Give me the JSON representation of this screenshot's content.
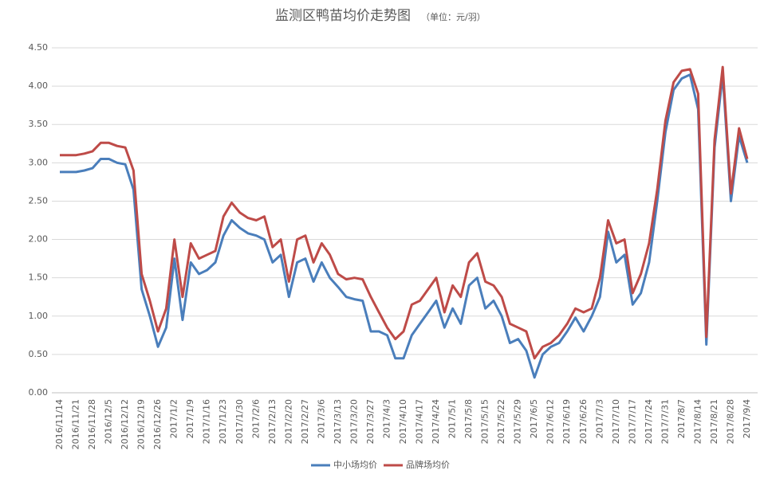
{
  "chart_data": {
    "type": "line",
    "title": "监测区鸭苗均价走势图",
    "subtitle": "（单位：元/羽）",
    "categories": [
      "2016/11/14",
      null,
      "2016/11/21",
      null,
      "2016/11/28",
      null,
      "2016/12/5",
      null,
      "2016/12/12",
      null,
      "2016/12/19",
      null,
      "2016/12/26",
      null,
      "2017/1/2",
      null,
      "2017/1/9",
      null,
      "2017/1/16",
      null,
      "2017/1/23",
      null,
      "2017/1/30",
      null,
      "2017/2/6",
      null,
      "2017/2/13",
      null,
      "2017/2/20",
      null,
      "2017/2/27",
      null,
      "2017/3/6",
      null,
      "2017/3/13",
      null,
      "2017/3/20",
      null,
      "2017/3/27",
      null,
      "2017/4/3",
      null,
      "2017/4/10",
      null,
      "2017/4/17",
      null,
      "2017/4/24",
      null,
      "2017/5/1",
      null,
      "2017/5/8",
      null,
      "2017/5/15",
      null,
      "2017/5/22",
      null,
      "2017/5/29",
      null,
      "2017/6/5",
      null,
      "2017/6/12",
      null,
      "2017/6/19",
      null,
      "2017/6/26",
      null,
      "2017/7/3",
      null,
      "2017/7/10",
      null,
      "2017/7/17",
      null,
      "2017/7/24",
      null,
      "2017/7/31",
      null,
      "2017/8/7",
      null,
      "2017/8/14",
      null,
      "2017/8/21",
      null,
      "2017/8/28",
      null,
      "2017/9/4"
    ],
    "series": [
      {
        "name": "中小场均价",
        "color": "#4a7ebb",
        "values": [
          2.88,
          2.88,
          2.88,
          2.9,
          2.93,
          3.05,
          3.05,
          3.0,
          2.98,
          2.65,
          1.35,
          1.0,
          0.6,
          0.85,
          1.75,
          0.95,
          1.7,
          1.55,
          1.6,
          1.7,
          2.05,
          2.25,
          2.15,
          2.08,
          2.05,
          2.0,
          1.7,
          1.8,
          1.25,
          1.7,
          1.75,
          1.45,
          1.7,
          1.5,
          1.38,
          1.25,
          1.22,
          1.2,
          0.8,
          0.8,
          0.75,
          0.45,
          0.45,
          0.75,
          0.9,
          1.05,
          1.2,
          0.85,
          1.1,
          0.9,
          1.4,
          1.5,
          1.1,
          1.2,
          1.0,
          0.65,
          0.7,
          0.55,
          0.2,
          0.5,
          0.6,
          0.65,
          0.8,
          0.98,
          0.8,
          1.0,
          1.25,
          2.1,
          1.7,
          1.8,
          1.15,
          1.3,
          1.7,
          2.5,
          3.4,
          3.95,
          4.1,
          4.15,
          3.7,
          0.63,
          3.2,
          4.15,
          2.5,
          3.35,
          3.0
        ]
      },
      {
        "name": "品牌场均价",
        "color": "#be4b48",
        "values": [
          3.1,
          3.1,
          3.1,
          3.12,
          3.15,
          3.26,
          3.26,
          3.22,
          3.2,
          2.9,
          1.55,
          1.2,
          0.8,
          1.1,
          2.0,
          1.25,
          1.95,
          1.75,
          1.8,
          1.85,
          2.3,
          2.48,
          2.35,
          2.28,
          2.25,
          2.3,
          1.9,
          2.0,
          1.45,
          2.0,
          2.05,
          1.7,
          1.95,
          1.8,
          1.55,
          1.48,
          1.5,
          1.48,
          1.25,
          1.05,
          0.85,
          0.7,
          0.8,
          1.15,
          1.2,
          1.35,
          1.5,
          1.05,
          1.4,
          1.25,
          1.7,
          1.82,
          1.45,
          1.4,
          1.25,
          0.9,
          0.85,
          0.8,
          0.45,
          0.6,
          0.65,
          0.75,
          0.9,
          1.1,
          1.05,
          1.1,
          1.5,
          2.25,
          1.95,
          2.0,
          1.3,
          1.55,
          1.95,
          2.65,
          3.55,
          4.05,
          4.2,
          4.22,
          3.9,
          0.73,
          3.3,
          4.25,
          2.6,
          3.45,
          3.05
        ]
      }
    ],
    "ylim": [
      0,
      4.5
    ],
    "yticks": [
      {
        "value": 0,
        "label": "0.00"
      },
      {
        "value": 0.5,
        "label": "0.50"
      },
      {
        "value": 1,
        "label": "1.00"
      },
      {
        "value": 1.5,
        "label": "1.50"
      },
      {
        "value": 2,
        "label": "2.00"
      },
      {
        "value": 2.5,
        "label": "2.50"
      },
      {
        "value": 3,
        "label": "3.00"
      },
      {
        "value": 3.5,
        "label": "3.50"
      },
      {
        "value": 4,
        "label": "4.00"
      },
      {
        "value": 4.5,
        "label": "4.50"
      }
    ],
    "grid": true,
    "legend": "bottom"
  }
}
